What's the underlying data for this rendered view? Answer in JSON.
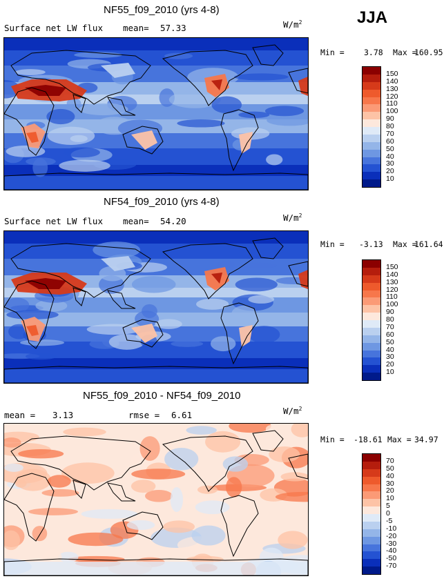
{
  "season": "JJA",
  "panels": [
    {
      "title": "NF55_f09_2010 (yrs 4-8)",
      "left_label": "Surface net LW flux",
      "stat1_label": "mean=",
      "stat1_value": "57.33",
      "stat2_label": "",
      "stat2_value": "",
      "units": "W/m",
      "units_exp": "2",
      "min_label": "Min =",
      "min_value": "3.78",
      "max_label": "Max =",
      "max_value": "160.95",
      "colorbar": {
        "labels": [
          "150",
          "140",
          "130",
          "120",
          "110",
          "100",
          "90",
          "80",
          "70",
          "60",
          "50",
          "40",
          "30",
          "20",
          "10"
        ],
        "colors": [
          "#8b0000",
          "#b51d0d",
          "#d63a1a",
          "#ee5a2c",
          "#f7774b",
          "#fb9a76",
          "#fdc3a6",
          "#fde8dc",
          "#dfeaf7",
          "#bad0ef",
          "#94b5e8",
          "#6e97e2",
          "#4774dc",
          "#2452d2",
          "#0a2fba",
          "#001a8a"
        ]
      },
      "map_style": "absolute"
    },
    {
      "title": "NF54_f09_2010 (yrs 4-8)",
      "left_label": "Surface net LW flux",
      "stat1_label": "mean=",
      "stat1_value": "54.20",
      "stat2_label": "",
      "stat2_value": "",
      "units": "W/m",
      "units_exp": "2",
      "min_label": "Min =",
      "min_value": "-3.13",
      "max_label": "Max =",
      "max_value": "161.64",
      "colorbar": {
        "labels": [
          "150",
          "140",
          "130",
          "120",
          "110",
          "100",
          "90",
          "80",
          "70",
          "60",
          "50",
          "40",
          "30",
          "20",
          "10"
        ],
        "colors": [
          "#8b0000",
          "#b51d0d",
          "#d63a1a",
          "#ee5a2c",
          "#f7774b",
          "#fb9a76",
          "#fdc3a6",
          "#fde8dc",
          "#dfeaf7",
          "#bad0ef",
          "#94b5e8",
          "#6e97e2",
          "#4774dc",
          "#2452d2",
          "#0a2fba",
          "#001a8a"
        ]
      },
      "map_style": "absolute"
    },
    {
      "title": "NF55_f09_2010 - NF54_f09_2010",
      "left_label": "mean =",
      "stat1_label": "",
      "stat1_value": "3.13",
      "stat2_label": "rmse =",
      "stat2_value": "6.61",
      "units": "W/m",
      "units_exp": "2",
      "min_label": "Min =",
      "min_value": "-18.61",
      "max_label": "Max =",
      "max_value": "34.97",
      "colorbar": {
        "labels": [
          "70",
          "50",
          "40",
          "30",
          "20",
          "10",
          "5",
          "0",
          "-5",
          "-10",
          "-20",
          "-30",
          "-40",
          "-50",
          "-70"
        ],
        "colors": [
          "#8b0000",
          "#b51d0d",
          "#d63a1a",
          "#ee5a2c",
          "#f7774b",
          "#fb9a76",
          "#fdc3a6",
          "#fde8dc",
          "#dfeaf7",
          "#bad0ef",
          "#94b5e8",
          "#6e97e2",
          "#4774dc",
          "#2452d2",
          "#0a2fba",
          "#001a8a"
        ]
      },
      "map_style": "difference"
    }
  ]
}
